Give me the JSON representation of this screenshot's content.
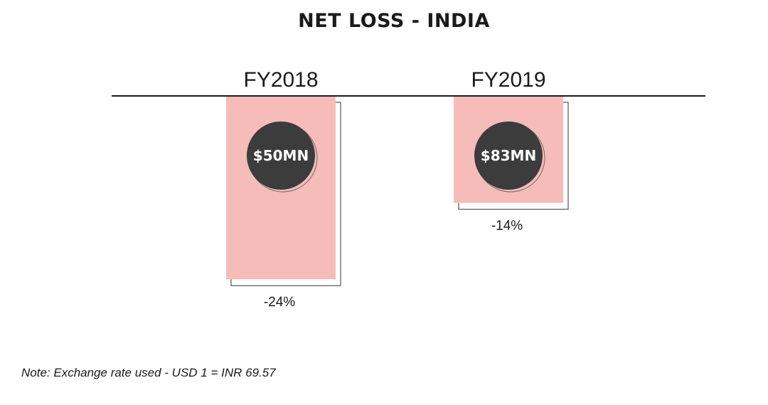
{
  "chart_data": {
    "type": "bar",
    "title": "NET LOSS - INDIA",
    "orientation": "downward",
    "categories": [
      "FY2018",
      "FY2019"
    ],
    "values": [
      -24,
      -14
    ],
    "unit": "%",
    "value_labels": [
      "-24%",
      "-14%"
    ],
    "amount_labels": [
      "$50MN",
      "$83MN"
    ],
    "ylim": [
      -24,
      0
    ],
    "xlabel": "",
    "ylabel": "",
    "grid": false,
    "legend": "none"
  },
  "note": "Note: Exchange rate used - USD 1 = INR 69.57",
  "colors": {
    "bar_fill": "#f5bcb9",
    "circle_fill": "#3d3c3c",
    "baseline": "#1a1a1a",
    "shadow_outline": "#555555"
  }
}
